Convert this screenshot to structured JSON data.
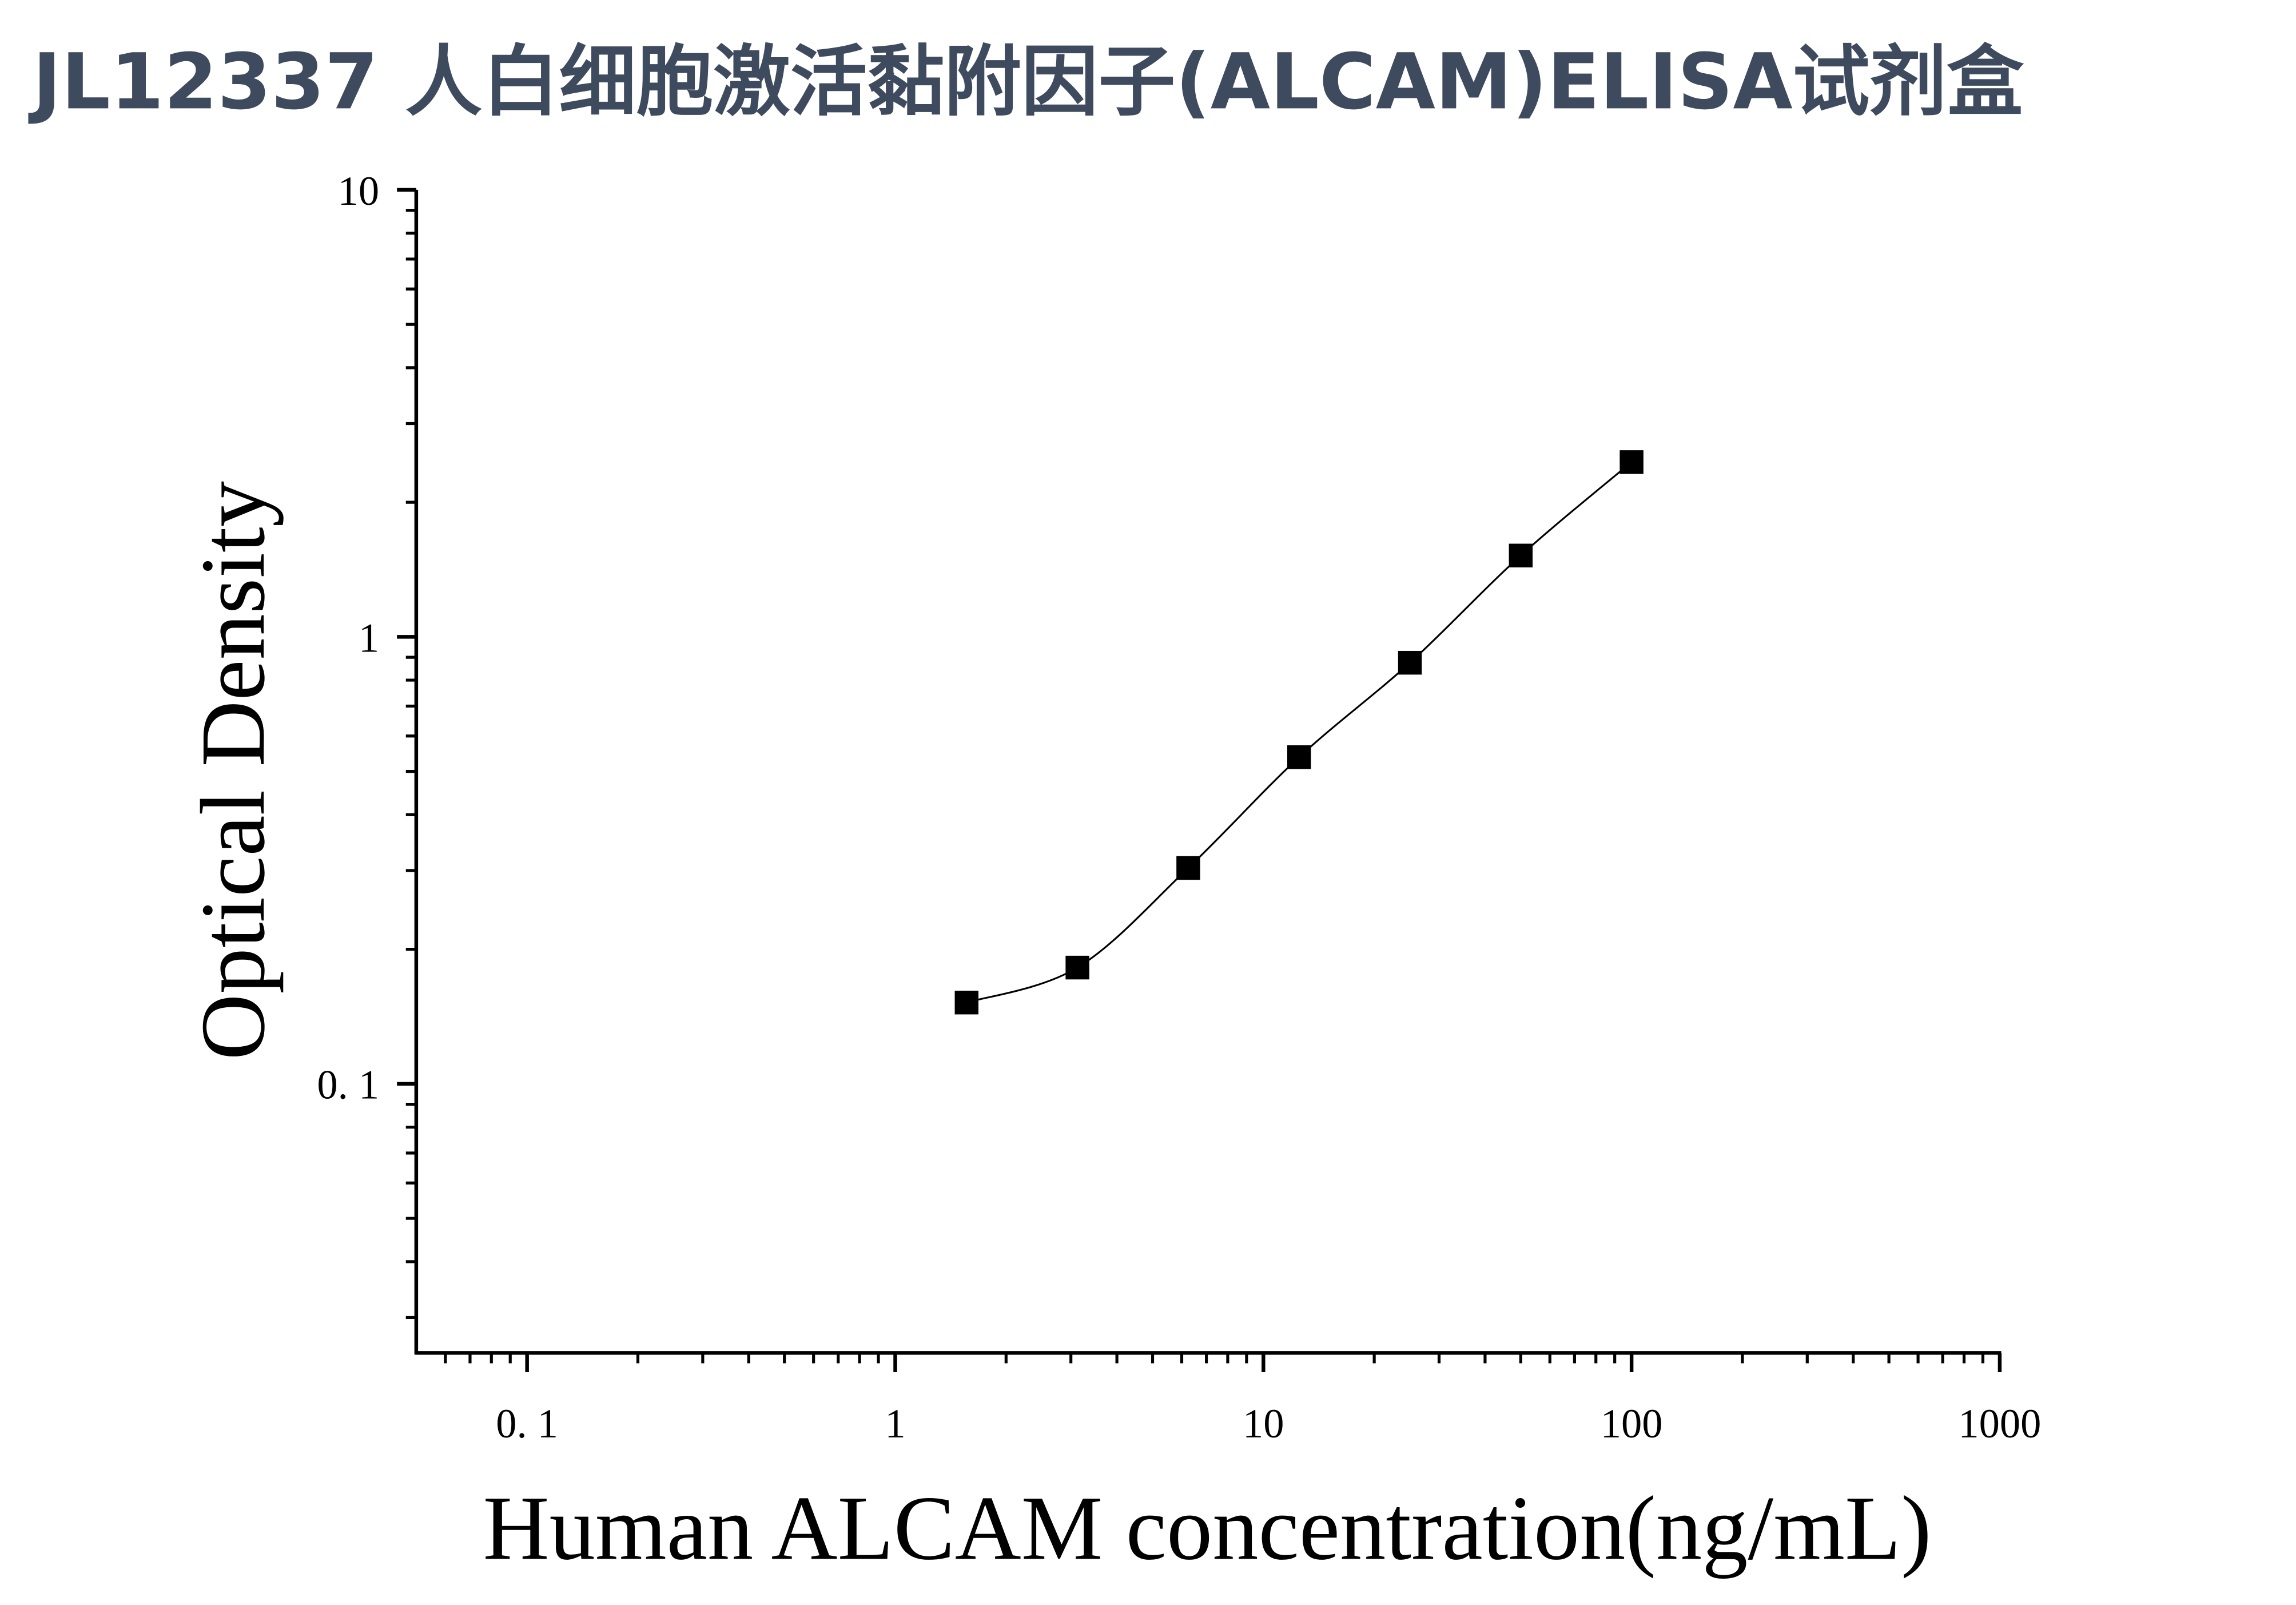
{
  "chart_data": {
    "type": "scatter",
    "title": "JL12337 人白细胞激活黏附因子(ALCAM)ELISA试剂盒",
    "x_label": "Human ALCAM concentration(ng/mL)",
    "y_label": "Optical Density",
    "x": [
      1.5625,
      3.125,
      6.25,
      12.5,
      25,
      50,
      100
    ],
    "series": [
      {
        "color": "#000000",
        "values": [
          0.152,
          0.182,
          0.304,
          0.538,
          0.875,
          1.52,
          2.46
        ]
      }
    ],
    "fit_curve": true,
    "xscale": "log",
    "yscale": "log",
    "xlim": [
      0.05,
      1000
    ],
    "ylim": [
      0.025,
      10
    ],
    "xticks": [
      {
        "value": 0.1,
        "label": "0. 1"
      },
      1,
      10,
      100,
      1000
    ],
    "yticks": [
      {
        "value": 0.1,
        "label": "0. 1"
      },
      1,
      10
    ],
    "xminor": [
      0.06,
      0.07,
      0.08,
      0.09,
      0.2,
      0.3,
      0.4,
      0.5,
      0.6,
      0.7,
      0.8,
      0.9,
      2,
      3,
      4,
      5,
      6,
      7,
      8,
      9,
      20,
      30,
      40,
      50,
      60,
      70,
      80,
      90,
      200,
      300,
      400,
      500,
      600,
      700,
      800,
      900
    ],
    "yminor": [
      0.03,
      0.04,
      0.05,
      0.06,
      0.07,
      0.08,
      0.09,
      0.2,
      0.3,
      0.4,
      0.5,
      0.6,
      0.7,
      0.8,
      0.9,
      2,
      3,
      4,
      5,
      6,
      7,
      8,
      9
    ]
  }
}
